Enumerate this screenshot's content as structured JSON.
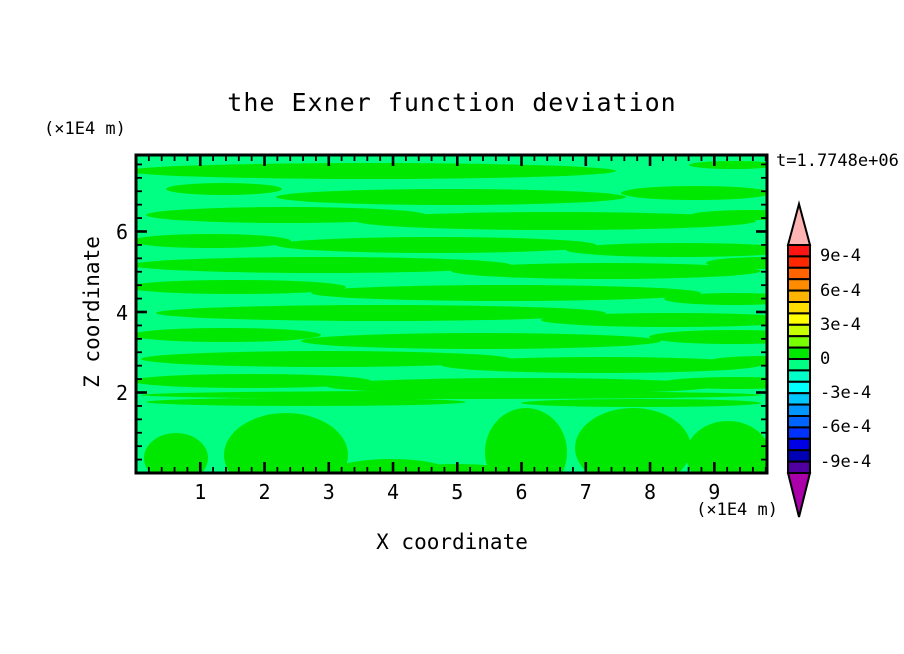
{
  "chart_data": {
    "type": "filled_contour",
    "title": "the Exner function deviation",
    "xlabel": "X coordinate",
    "ylabel": "Z coordinate",
    "x_unit": "(×1E4 m)",
    "z_unit": "(×1E4 m)",
    "time_annotation": "t=1.7748e+06",
    "x_ticks": [
      1,
      2,
      3,
      4,
      5,
      6,
      7,
      8,
      9
    ],
    "z_ticks": [
      2,
      4,
      6
    ],
    "x_range": [
      0,
      9.82
    ],
    "z_range": [
      0,
      7.9
    ],
    "x_minor_interval": 0.2,
    "z_minor_interval": 0.3333,
    "grid": false,
    "legend_position": "right",
    "contour_interval": 0.0001,
    "visible_field_levels": {
      "positive_band": "0 to 1e-4",
      "negative_band": "-1e-4 to 0"
    },
    "field_colors": {
      "positive_band": "#00E800",
      "negative_band": "#00FF82"
    },
    "colorbar": {
      "labels": [
        "9e-4",
        "6e-4",
        "3e-4",
        "0",
        "-3e-4",
        "-6e-4",
        "-9e-4"
      ],
      "box_colors_top_to_bottom": [
        "#FF1414",
        "#FF2800",
        "#FF6400",
        "#FF8C00",
        "#FFB400",
        "#FFDC00",
        "#FFFF00",
        "#C8FF00",
        "#78FF00",
        "#00E800",
        "#00FF82",
        "#00FFC8",
        "#00FFFF",
        "#00C8FF",
        "#0096FF",
        "#0064FF",
        "#0032FF",
        "#0000E6",
        "#0000B4",
        "#5000A0"
      ],
      "over_arrow_color": "#FFB4B4",
      "under_arrow_color": "#AA00AA",
      "value_top": 0.001,
      "value_bottom": -0.001
    },
    "regions": {
      "streaks": [
        [
          235,
          16,
          245,
          8
        ],
        [
          598,
          10,
          45,
          4
        ],
        [
          88,
          34,
          58,
          6
        ],
        [
          315,
          42,
          175,
          8
        ],
        [
          560,
          38,
          75,
          7
        ],
        [
          150,
          60,
          140,
          8
        ],
        [
          420,
          66,
          200,
          9
        ],
        [
          615,
          60,
          60,
          5
        ],
        [
          75,
          86,
          80,
          7
        ],
        [
          300,
          90,
          160,
          8
        ],
        [
          545,
          95,
          115,
          7
        ],
        [
          185,
          110,
          190,
          8
        ],
        [
          470,
          116,
          155,
          8
        ],
        [
          630,
          108,
          60,
          6
        ],
        [
          100,
          132,
          110,
          7
        ],
        [
          370,
          138,
          195,
          8
        ],
        [
          598,
          144,
          70,
          6
        ],
        [
          245,
          158,
          225,
          8
        ],
        [
          535,
          165,
          130,
          7
        ],
        [
          90,
          180,
          95,
          7
        ],
        [
          345,
          186,
          180,
          8
        ],
        [
          598,
          182,
          85,
          7
        ],
        [
          190,
          204,
          185,
          8
        ],
        [
          465,
          210,
          160,
          8
        ],
        [
          628,
          206,
          55,
          5
        ],
        [
          115,
          226,
          120,
          7
        ],
        [
          385,
          231,
          195,
          8
        ],
        [
          600,
          228,
          75,
          6
        ],
        [
          315,
          240,
          310,
          4
        ],
        [
          170,
          247,
          160,
          4
        ],
        [
          505,
          248,
          120,
          4
        ]
      ],
      "blobs": [
        [
          40,
          303,
          32,
          25
        ],
        [
          150,
          300,
          62,
          42
        ],
        [
          255,
          315,
          55,
          11
        ],
        [
          390,
          297,
          41,
          44
        ],
        [
          497,
          293,
          58,
          40
        ],
        [
          592,
          300,
          42,
          34
        ],
        [
          320,
          317,
          60,
          8
        ]
      ]
    },
    "frame_color": "#000000",
    "background_color": "#FFFFFF"
  }
}
